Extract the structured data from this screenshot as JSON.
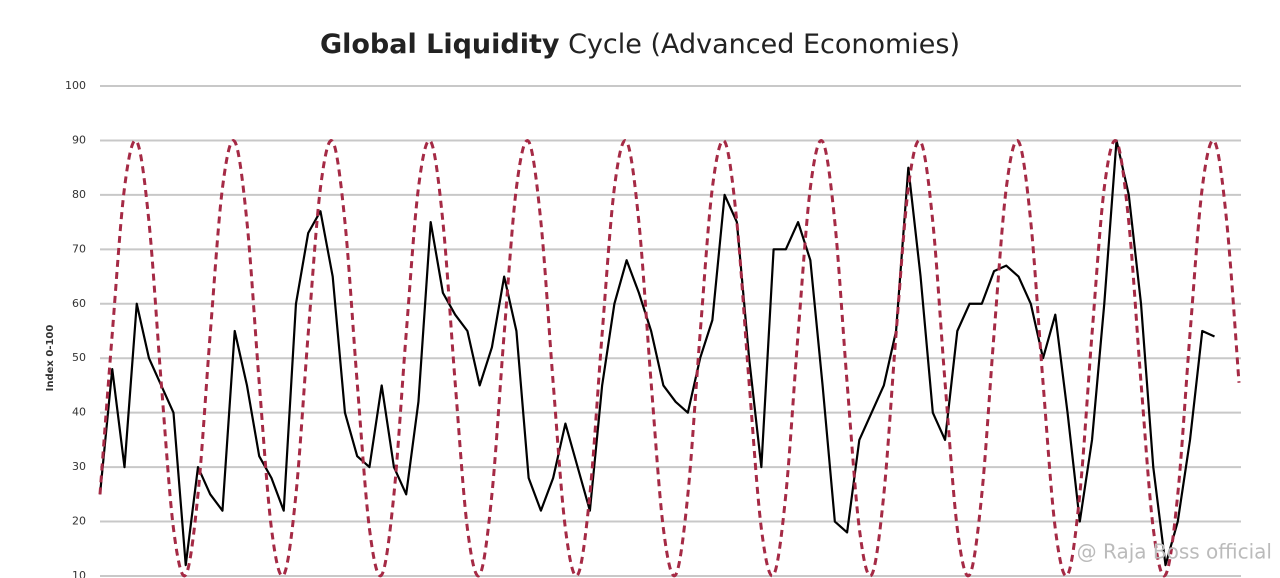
{
  "chart_data": {
    "type": "line",
    "title_bold": "Global Liquidity",
    "title": "Cycle (Advanced Economies)",
    "ylabel": "Index 0-100",
    "annotation": "@ Raja Boss official",
    "ylim": [
      10,
      100
    ],
    "yticks": [
      10,
      20,
      30,
      40,
      50,
      60,
      70,
      80,
      90,
      100
    ],
    "grid": true,
    "series": [
      {
        "name": "Global Liquidity",
        "color": "#000000",
        "style": "solid",
        "values": [
          25,
          48,
          30,
          60,
          50,
          45,
          40,
          12,
          30,
          25,
          22,
          55,
          45,
          32,
          28,
          22,
          60,
          73,
          77,
          65,
          40,
          32,
          30,
          45,
          30,
          25,
          42,
          75,
          62,
          58,
          55,
          45,
          52,
          65,
          55,
          28,
          22,
          28,
          38,
          30,
          22,
          45,
          60,
          68,
          62,
          55,
          45,
          42,
          40,
          50,
          57,
          80,
          75,
          50,
          30,
          70,
          70,
          75,
          68,
          45,
          20,
          18,
          35,
          40,
          45,
          55,
          85,
          65,
          40,
          35,
          55,
          60,
          60,
          66,
          67,
          65,
          60,
          50,
          58,
          40,
          20,
          35,
          60,
          90,
          80,
          60,
          30,
          12,
          20,
          35,
          55,
          54,
          null,
          null
        ]
      },
      {
        "name": "Cycle",
        "color": "#a52a45",
        "style": "dashed",
        "values": [
          25,
          54.5,
          81.3,
          89.8,
          75,
          45.5,
          18.7,
          10.2,
          25,
          54.5,
          81.3,
          89.8,
          75,
          45.5,
          18.7,
          10.2,
          25,
          54.5,
          81.3,
          89.8,
          75,
          45.5,
          18.7,
          10.2,
          25,
          54.5,
          81.3,
          89.8,
          75,
          45.5,
          18.7,
          10.2,
          25,
          54.5,
          81.3,
          89.8,
          75,
          45.5,
          18.7,
          10.2,
          25,
          54.5,
          81.3,
          89.8,
          75,
          45.5,
          18.7,
          10.2,
          25,
          54.5,
          81.3,
          89.8,
          75,
          45.5,
          18.7,
          10.2,
          25,
          54.5,
          81.3,
          89.8,
          75,
          45.5,
          18.7,
          10.2,
          25,
          54.5,
          81.3,
          89.8,
          75,
          45.5,
          18.7,
          10.2,
          25,
          54.5,
          81.3,
          89.8,
          75,
          45.5,
          18.7,
          10.2,
          25,
          54.5,
          81.3,
          89.8,
          75,
          45.5,
          18.7,
          10.2,
          25,
          54.5,
          81.3,
          89.8,
          75,
          45.5
        ]
      }
    ]
  }
}
